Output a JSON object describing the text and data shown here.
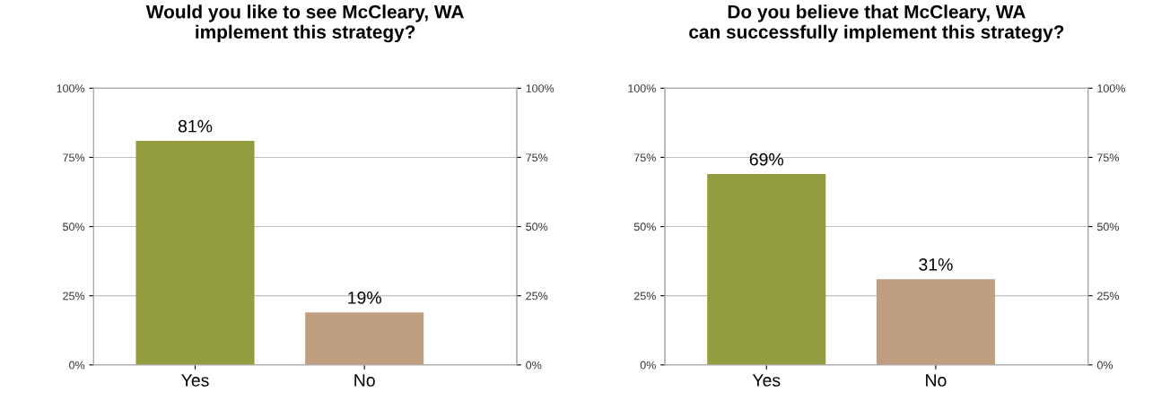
{
  "chart_data": [
    {
      "type": "bar",
      "title": "Would you like to see McCleary, WA\nimplement this strategy?",
      "categories": [
        "Yes",
        "No"
      ],
      "values": [
        81,
        19
      ],
      "colors": [
        "#939d3f",
        "#c09f80"
      ],
      "value_labels": [
        "81%",
        "19%"
      ],
      "ylim": [
        0,
        100
      ],
      "yticks": [
        {
          "value": 0,
          "label": "0%"
        },
        {
          "value": 25,
          "label": "25%"
        },
        {
          "value": 50,
          "label": "50%"
        },
        {
          "value": 75,
          "label": "75%"
        },
        {
          "value": 100,
          "label": "100%"
        }
      ],
      "y2lim": [
        0,
        100
      ],
      "y2ticks": [
        {
          "value": 0,
          "label": "0%"
        },
        {
          "value": 25,
          "label": "25%"
        },
        {
          "value": 50,
          "label": "50%"
        },
        {
          "value": 75,
          "label": "75%"
        },
        {
          "value": 100,
          "label": "100%"
        }
      ],
      "grid": "y"
    },
    {
      "type": "bar",
      "title": "Do you believe that McCleary, WA\ncan successfully implement this strategy?",
      "categories": [
        "Yes",
        "No"
      ],
      "values": [
        69,
        31
      ],
      "colors": [
        "#939d3f",
        "#c09f80"
      ],
      "value_labels": [
        "69%",
        "31%"
      ],
      "ylim": [
        0,
        100
      ],
      "yticks": [
        {
          "value": 0,
          "label": "0%"
        },
        {
          "value": 25,
          "label": "25%"
        },
        {
          "value": 50,
          "label": "50%"
        },
        {
          "value": 75,
          "label": "75%"
        },
        {
          "value": 100,
          "label": "100%"
        }
      ],
      "y2lim": [
        0,
        100
      ],
      "y2ticks": [
        {
          "value": 0,
          "label": "0%"
        },
        {
          "value": 25,
          "label": "25%"
        },
        {
          "value": 50,
          "label": "50%"
        },
        {
          "value": 75,
          "label": "75%"
        },
        {
          "value": 100,
          "label": "100%"
        }
      ],
      "grid": "y"
    }
  ]
}
